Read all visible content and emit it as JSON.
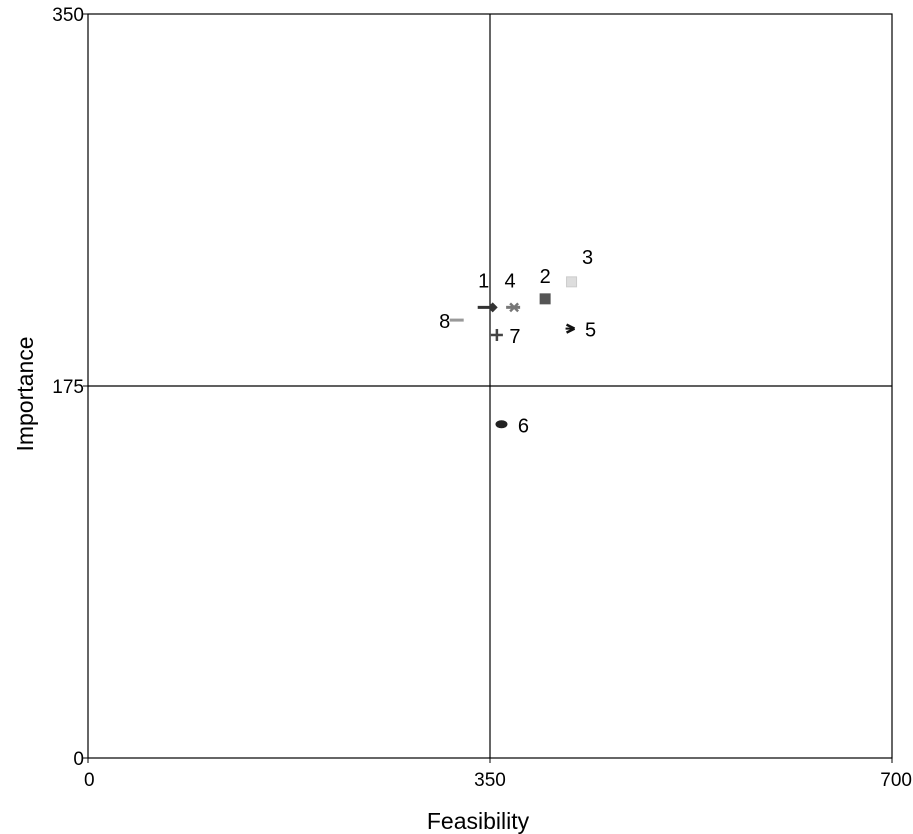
{
  "chart_data": {
    "type": "scatter",
    "title": "",
    "xlabel": "Feasibility",
    "ylabel": "Importance",
    "xlim": [
      0,
      700
    ],
    "ylim": [
      0,
      350
    ],
    "x_ticks": [
      "0",
      "350",
      "700"
    ],
    "y_ticks": [
      "0",
      "175",
      "350"
    ],
    "reference_lines": {
      "x": 350,
      "y": 175
    },
    "grid": false,
    "legend": "none",
    "points": [
      {
        "label": "1",
        "x": 348,
        "y": 212,
        "marker": "diamond",
        "color": "#333333"
      },
      {
        "label": "2",
        "x": 398,
        "y": 216,
        "marker": "square",
        "color": "#555555"
      },
      {
        "label": "3",
        "x": 421,
        "y": 224,
        "marker": "square",
        "color": "#dddddd"
      },
      {
        "label": "4",
        "x": 371,
        "y": 212,
        "marker": "x",
        "color": "#777777"
      },
      {
        "label": "5",
        "x": 421,
        "y": 202,
        "marker": "star",
        "color": "#111111"
      },
      {
        "label": "6",
        "x": 360,
        "y": 157,
        "marker": "circle",
        "color": "#222222"
      },
      {
        "label": "7",
        "x": 356,
        "y": 199,
        "marker": "plus",
        "color": "#444444"
      },
      {
        "label": "8",
        "x": 321,
        "y": 206,
        "marker": "dash",
        "color": "#999999"
      }
    ]
  }
}
